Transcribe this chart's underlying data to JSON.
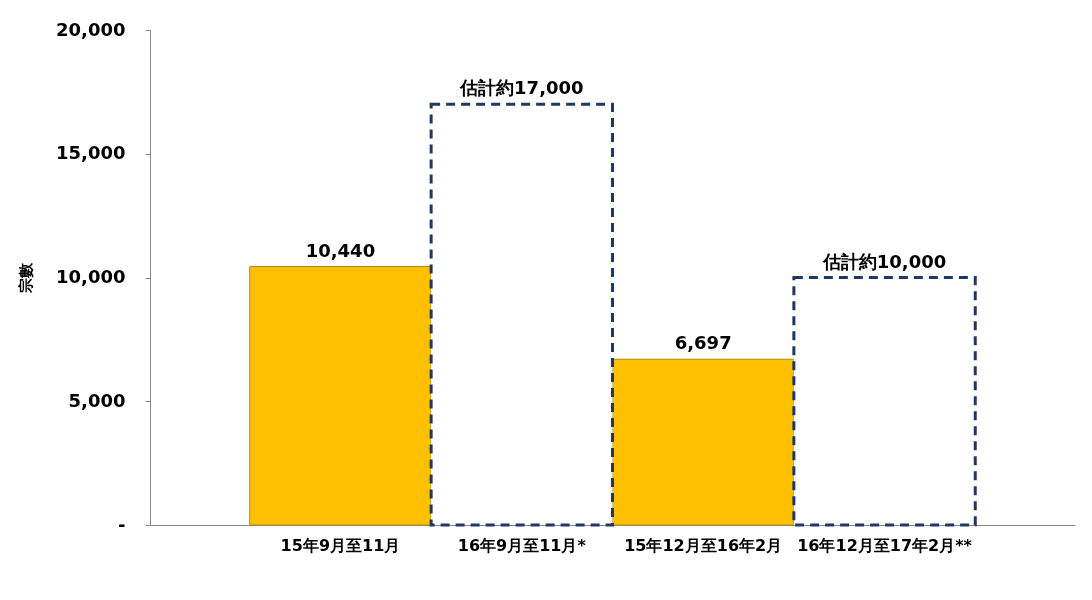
{
  "chart_data": {
    "type": "bar",
    "ylabel": "宗數",
    "categories": [
      "15年9月至11月",
      "16年9月至11月*",
      "15年12月至16年2月",
      "16年12月至17年2月**"
    ],
    "series": [
      {
        "color": "#ffc000",
        "values": [
          10440,
          null,
          6697,
          null
        ],
        "value_labels": [
          "10,440",
          null,
          "6,697",
          null
        ]
      },
      {
        "color": "#1f3864",
        "line_style": "dashed",
        "values": [
          null,
          17000,
          null,
          10000
        ],
        "value_labels": [
          null,
          "估計約17,000",
          null,
          "估計約10,000"
        ]
      }
    ],
    "ylim": [
      0,
      20000
    ],
    "yticks": [
      {
        "value": 0,
        "label": "-"
      },
      {
        "value": 5000,
        "label": "5,000"
      },
      {
        "value": 10000,
        "label": "10,000"
      },
      {
        "value": 15000,
        "label": "15,000"
      },
      {
        "value": 20000,
        "label": "20,000"
      }
    ],
    "grid": false
  }
}
